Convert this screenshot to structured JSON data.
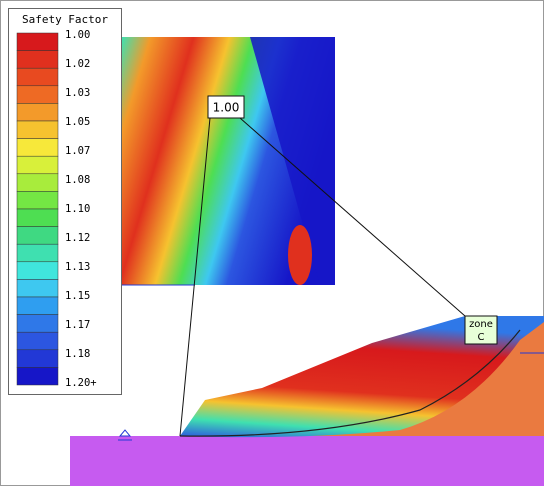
{
  "legend": {
    "title": "Safety Factor",
    "labels": [
      "1.00",
      "1.02",
      "1.03",
      "1.05",
      "1.07",
      "1.08",
      "1.10",
      "1.12",
      "1.13",
      "1.15",
      "1.17",
      "1.18",
      "1.20+"
    ],
    "colors": [
      "#d7191c",
      "#e0301e",
      "#e84a20",
      "#ee6a24",
      "#f39a2a",
      "#f6c22f",
      "#f7e83a",
      "#d8f03a",
      "#a8ec3c",
      "#74e644",
      "#4ede52",
      "#3fd982",
      "#3fe0b0",
      "#40e6dd",
      "#3ec8f0",
      "#2f9ef0",
      "#2f78e8",
      "#2c56e0",
      "#2238d6",
      "#1616c8"
    ]
  },
  "callout": {
    "label": "1.00"
  },
  "zone": {
    "line1": "zone",
    "line2": "C"
  }
}
